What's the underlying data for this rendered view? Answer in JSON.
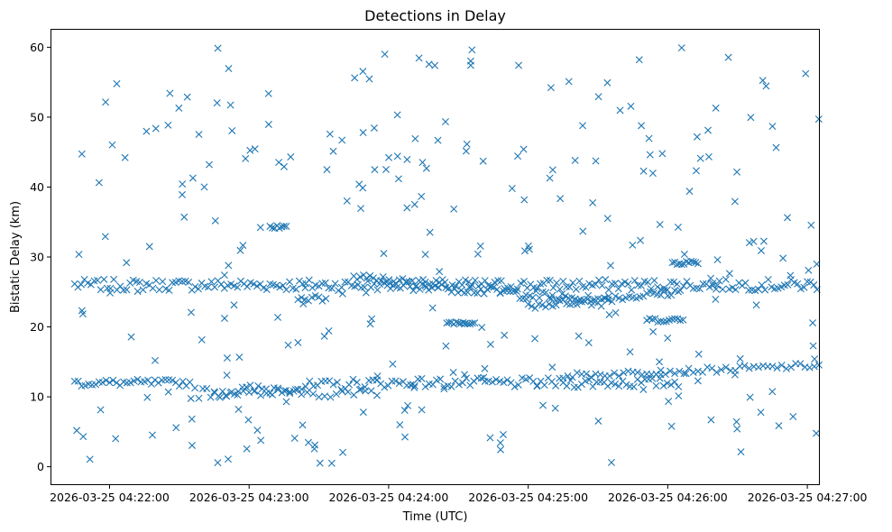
{
  "chart_data": {
    "type": "scatter",
    "title": "Detections in Delay",
    "xlabel": "Time (UTC)",
    "ylabel": "Bistatic Delay (km)",
    "x_start": "2026-03-25 04:21:45",
    "x_end": "2026-03-25 04:27:05",
    "xlim": [
      "2026-03-25 04:21:35",
      "2026-03-25 04:27:05"
    ],
    "ylim": [
      -2.5,
      62.5
    ],
    "xticks": [
      "2026-03-25 04:22:00",
      "2026-03-25 04:23:00",
      "2026-03-25 04:24:00",
      "2026-03-25 04:25:00",
      "2026-03-25 04:26:00",
      "2026-03-25 04:27:00"
    ],
    "yticks": [
      0,
      10,
      20,
      30,
      40,
      50,
      60
    ],
    "marker": "x",
    "marker_color": "#1f77b4",
    "grid": false,
    "legend": false,
    "tracks": [
      {
        "t0": 0,
        "t1": 320,
        "y0": 26.0,
        "y1": 26.0,
        "step": 1.4,
        "jitter": 0.8
      },
      {
        "t0": 0,
        "t1": 50,
        "y0": 12.0,
        "y1": 12.0,
        "step": 1.5,
        "jitter": 0.5
      },
      {
        "t0": 50,
        "t1": 130,
        "y0": 10.5,
        "y1": 12.0,
        "step": 1.7,
        "jitter": 0.8
      },
      {
        "t0": 130,
        "t1": 260,
        "y0": 12.0,
        "y1": 12.0,
        "step": 1.6,
        "jitter": 0.7
      },
      {
        "t0": 210,
        "t1": 320,
        "y0": 13.0,
        "y1": 14.5,
        "step": 2.0,
        "jitter": 0.4
      },
      {
        "t0": 120,
        "t1": 230,
        "y0": 27.0,
        "y1": 23.5,
        "step": 1.4,
        "jitter": 0.7
      },
      {
        "t0": 195,
        "t1": 260,
        "y0": 23.0,
        "y1": 25.0,
        "step": 1.5,
        "jitter": 0.5
      },
      {
        "t0": 60,
        "t1": 130,
        "y0": 10.5,
        "y1": 10.5,
        "step": 2.5,
        "jitter": 0.6
      },
      {
        "t0": 160,
        "t1": 172,
        "y0": 20.6,
        "y1": 20.6,
        "step": 1.0,
        "jitter": 0.2
      },
      {
        "t0": 84,
        "t1": 91,
        "y0": 34.5,
        "y1": 34.5,
        "step": 1.0,
        "jitter": 0.5
      },
      {
        "t0": 96,
        "t1": 108,
        "y0": 24.0,
        "y1": 24.0,
        "step": 1.5,
        "jitter": 0.5
      },
      {
        "t0": 246,
        "t1": 262,
        "y0": 21.0,
        "y1": 21.0,
        "step": 1.2,
        "jitter": 0.3
      },
      {
        "t0": 257,
        "t1": 268,
        "y0": 29.2,
        "y1": 29.2,
        "step": 1.0,
        "jitter": 0.3
      }
    ],
    "noise_count": 280,
    "noise_ymin": 0.5,
    "noise_ymax": 60,
    "scatter_seed": 7
  }
}
